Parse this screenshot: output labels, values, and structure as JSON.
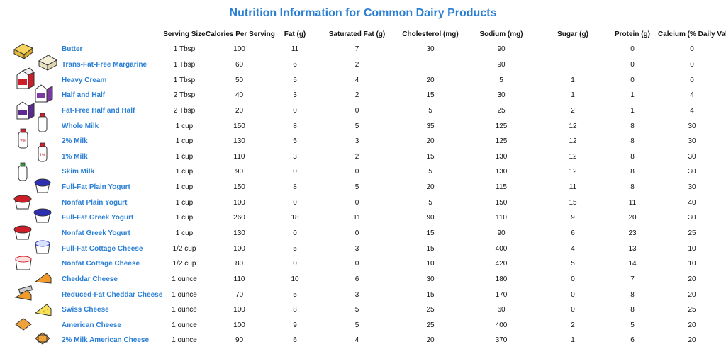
{
  "title": "Nutrition Information for Common Dairy Products",
  "colors": {
    "title": "#2a7fd4",
    "product_name": "#2a7fd4"
  },
  "columns": [
    "",
    "Serving Size",
    "Calories Per Serving",
    "Fat (g)",
    "Saturated Fat (g)",
    "Cholesterol (mg)",
    "Sodium (mg)",
    "Sugar (g)",
    "Protein (g)",
    "Calcium (% Daily Value)"
  ],
  "rows": [
    {
      "icon": "butter-icon",
      "cells": [
        "Butter",
        "1 Tbsp",
        "100",
        "11",
        "7",
        "30",
        "90",
        "",
        "0",
        "0"
      ]
    },
    {
      "icon": "margarine-icon",
      "cells": [
        "Trans-Fat-Free Margarine",
        "1 Tbsp",
        "60",
        "6",
        "2",
        "",
        "90",
        "",
        "0",
        "0"
      ]
    },
    {
      "icon": "cream-carton-icon",
      "cells": [
        "Heavy Cream",
        "1 Tbsp",
        "50",
        "5",
        "4",
        "20",
        "5",
        "1",
        "0",
        "0"
      ]
    },
    {
      "icon": "half-and-half-carton-icon",
      "cells": [
        "Half and Half",
        "2 Tbsp",
        "40",
        "3",
        "2",
        "15",
        "30",
        "1",
        "1",
        "4"
      ]
    },
    {
      "icon": "fat-free-half-and-half-carton-icon",
      "cells": [
        "Fat-Free Half and Half",
        "2 Tbsp",
        "20",
        "0",
        "0",
        "5",
        "25",
        "2",
        "1",
        "4"
      ]
    },
    {
      "icon": "whole-milk-bottle-icon",
      "cells": [
        "Whole Milk",
        "1 cup",
        "150",
        "8",
        "5",
        "35",
        "125",
        "12",
        "8",
        "30"
      ]
    },
    {
      "icon": "2-percent-milk-bottle-icon",
      "cells": [
        "2% Milk",
        "1 cup",
        "130",
        "5",
        "3",
        "20",
        "125",
        "12",
        "8",
        "30"
      ]
    },
    {
      "icon": "1-percent-milk-bottle-icon",
      "cells": [
        "1% Milk",
        "1 cup",
        "110",
        "3",
        "2",
        "15",
        "130",
        "12",
        "8",
        "30"
      ]
    },
    {
      "icon": "skim-milk-bottle-icon",
      "cells": [
        "Skim Milk",
        "1 cup",
        "90",
        "0",
        "0",
        "5",
        "130",
        "12",
        "8",
        "30"
      ]
    },
    {
      "icon": "full-fat-yogurt-cup-icon",
      "cells": [
        "Full-Fat Plain Yogurt",
        "1 cup",
        "150",
        "8",
        "5",
        "20",
        "115",
        "11",
        "8",
        "30"
      ]
    },
    {
      "icon": "nonfat-yogurt-cup-icon",
      "cells": [
        "Nonfat Plain Yogurt",
        "1 cup",
        "100",
        "0",
        "0",
        "5",
        "150",
        "15",
        "11",
        "40"
      ]
    },
    {
      "icon": "greek-yogurt-cup-icon",
      "cells": [
        "Full-Fat Greek Yogurt",
        "1 cup",
        "260",
        "18",
        "11",
        "90",
        "110",
        "9",
        "20",
        "30"
      ]
    },
    {
      "icon": "nonfat-greek-yogurt-cup-icon",
      "cells": [
        "Nonfat Greek Yogurt",
        "1 cup",
        "130",
        "0",
        "0",
        "15",
        "90",
        "6",
        "23",
        "25"
      ]
    },
    {
      "icon": "cottage-cheese-tub-icon",
      "cells": [
        "Full-Fat Cottage Cheese",
        "1/2 cup",
        "100",
        "5",
        "3",
        "15",
        "400",
        "4",
        "13",
        "10"
      ]
    },
    {
      "icon": "nonfat-cottage-cheese-tub-icon",
      "cells": [
        "Nonfat Cottage Cheese",
        "1/2 cup",
        "80",
        "0",
        "0",
        "10",
        "420",
        "5",
        "14",
        "10"
      ]
    },
    {
      "icon": "cheddar-wedge-icon",
      "cells": [
        "Cheddar Cheese",
        "1 ounce",
        "110",
        "10",
        "6",
        "30",
        "180",
        "0",
        "7",
        "20"
      ]
    },
    {
      "icon": "reduced-fat-cheddar-wedge-icon",
      "cells": [
        "Reduced-Fat Cheddar Cheese",
        "1 ounce",
        "70",
        "5",
        "3",
        "15",
        "170",
        "0",
        "8",
        "20"
      ]
    },
    {
      "icon": "swiss-cheese-wedge-icon",
      "cells": [
        "Swiss Cheese",
        "1 ounce",
        "100",
        "8",
        "5",
        "25",
        "60",
        "0",
        "8",
        "25"
      ]
    },
    {
      "icon": "american-cheese-slice-icon",
      "cells": [
        "American Cheese",
        "1 ounce",
        "100",
        "9",
        "5",
        "25",
        "400",
        "2",
        "5",
        "20"
      ]
    },
    {
      "icon": "2-percent-american-cheese-package-icon",
      "cells": [
        "2% Milk American Cheese",
        "1 ounce",
        "90",
        "6",
        "4",
        "20",
        "370",
        "1",
        "6",
        "20"
      ]
    }
  ]
}
